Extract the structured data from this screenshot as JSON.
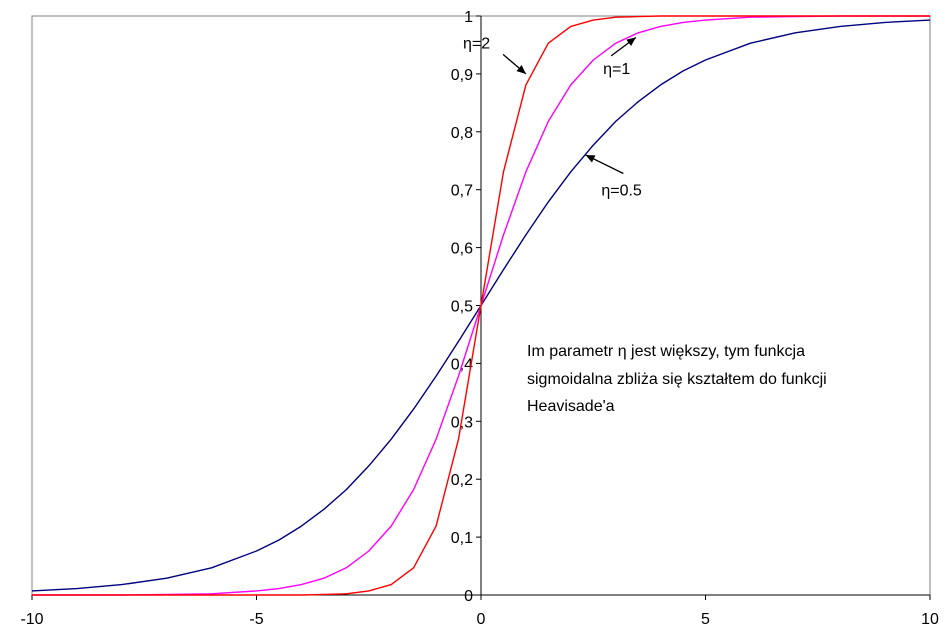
{
  "chart_data": {
    "type": "line",
    "title": "",
    "xlabel": "",
    "ylabel": "",
    "xlim": [
      -10,
      10
    ],
    "ylim": [
      0,
      1
    ],
    "x_ticks": [
      -10,
      -5,
      0,
      5,
      10
    ],
    "x_tick_labels": [
      "-10",
      "-5",
      "0",
      "5",
      "10"
    ],
    "y_ticks": [
      0,
      0.1,
      0.2,
      0.3,
      0.4,
      0.5,
      0.6,
      0.7,
      0.8,
      0.9,
      1
    ],
    "y_tick_labels": [
      "0",
      "0,1",
      "0,2",
      "0,3",
      "0,4",
      "0,5",
      "0,6",
      "0,7",
      "0,8",
      "0,9",
      "1"
    ],
    "grid": false,
    "legend": "none",
    "x": [
      -10,
      -9,
      -8,
      -7,
      -6,
      -5,
      -4.5,
      -4,
      -3.5,
      -3,
      -2.5,
      -2,
      -1.5,
      -1,
      -0.5,
      0,
      0.5,
      1,
      1.5,
      2,
      2.5,
      3,
      3.5,
      4,
      4.5,
      5,
      6,
      7,
      8,
      9,
      10
    ],
    "series": [
      {
        "name": "η=0.5",
        "color": "#000080",
        "values": [
          0.007,
          0.011,
          0.018,
          0.029,
          0.047,
          0.076,
          0.095,
          0.119,
          0.148,
          0.182,
          0.223,
          0.269,
          0.321,
          0.378,
          0.438,
          0.5,
          0.562,
          0.622,
          0.679,
          0.731,
          0.777,
          0.818,
          0.852,
          0.881,
          0.905,
          0.924,
          0.953,
          0.971,
          0.982,
          0.989,
          0.993
        ]
      },
      {
        "name": "η=1",
        "color": "#ff00ff",
        "values": [
          0.0,
          0.0,
          0.0,
          0.001,
          0.002,
          0.007,
          0.011,
          0.018,
          0.029,
          0.047,
          0.076,
          0.119,
          0.182,
          0.269,
          0.378,
          0.5,
          0.622,
          0.731,
          0.818,
          0.881,
          0.924,
          0.953,
          0.971,
          0.982,
          0.989,
          0.993,
          0.998,
          0.999,
          1.0,
          1.0,
          1.0
        ]
      },
      {
        "name": "η=2",
        "color": "#ff0000",
        "values": [
          0.0,
          0.0,
          0.0,
          0.0,
          0.0,
          0.0,
          0.0,
          0.0,
          0.001,
          0.002,
          0.007,
          0.018,
          0.047,
          0.119,
          0.269,
          0.5,
          0.731,
          0.881,
          0.953,
          0.982,
          0.993,
          0.998,
          0.999,
          1.0,
          1.0,
          1.0,
          1.0,
          1.0,
          1.0,
          1.0,
          1.0
        ]
      }
    ],
    "annotations": [
      {
        "text": "η=2",
        "x": -0.4,
        "y": 0.944,
        "arrow_to": [
          1.0,
          0.9
        ]
      },
      {
        "text": "η=1",
        "x": 2.72,
        "y": 0.9,
        "arrow_to": [
          3.45,
          0.963
        ]
      },
      {
        "text": "η=0.5",
        "x": 2.68,
        "y": 0.69,
        "arrow_to": [
          2.33,
          0.76
        ]
      }
    ],
    "note": {
      "lines": [
        "Im parametr η jest większy, tym funkcja",
        "sigmoidalna zbliża się kształtem do funkcji",
        "Heavisade'a"
      ]
    }
  }
}
